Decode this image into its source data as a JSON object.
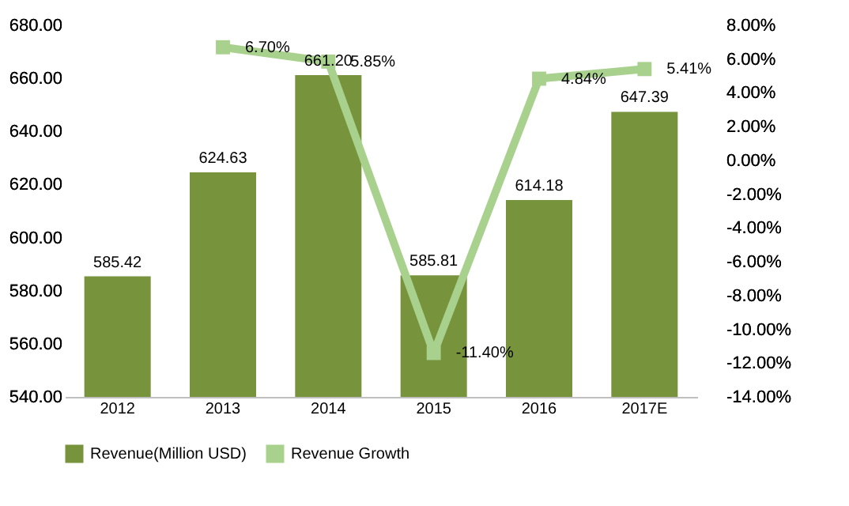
{
  "chart_data": {
    "type": "bar",
    "categories": [
      "2012",
      "2013",
      "2014",
      "2015",
      "2016",
      "2017E"
    ],
    "series": [
      {
        "name": "Revenue(Million USD)",
        "color": "#77933c",
        "values": [
          585.42,
          624.63,
          661.2,
          585.81,
          614.18,
          647.39
        ],
        "value_labels": [
          "585.42",
          "624.63",
          "661.20",
          "585.81",
          "614.18",
          "647.39"
        ]
      },
      {
        "name": "Revenue Growth",
        "type": "line",
        "axis": "y2",
        "color": "#a9d18e",
        "marker": "square",
        "values": [
          null,
          6.7,
          5.85,
          -11.4,
          4.84,
          5.41
        ],
        "value_labels": [
          null,
          "6.70%",
          "5.85%",
          "-11.40%",
          "4.84%",
          "5.41%"
        ]
      }
    ],
    "ylim": [
      540,
      680
    ],
    "yticks": [
      {
        "value": 540,
        "label": "540.00"
      },
      {
        "value": 560,
        "label": "560.00"
      },
      {
        "value": 580,
        "label": "580.00"
      },
      {
        "value": 600,
        "label": "600.00"
      },
      {
        "value": 620,
        "label": "620.00"
      },
      {
        "value": 640,
        "label": "640.00"
      },
      {
        "value": 660,
        "label": "660.00"
      },
      {
        "value": 680,
        "label": "680.00"
      }
    ],
    "y2lim": [
      -14,
      8
    ],
    "y2ticks": [
      {
        "value": -14,
        "label": "-14.00%"
      },
      {
        "value": -12,
        "label": "-12.00%"
      },
      {
        "value": -10,
        "label": "-10.00%"
      },
      {
        "value": -8,
        "label": "-8.00%"
      },
      {
        "value": -6,
        "label": "-6.00%"
      },
      {
        "value": -4,
        "label": "-4.00%"
      },
      {
        "value": -2,
        "label": "-2.00%"
      },
      {
        "value": 0,
        "label": "0.00%"
      },
      {
        "value": 2,
        "label": "2.00%"
      },
      {
        "value": 4,
        "label": "4.00%"
      },
      {
        "value": 6,
        "label": "6.00%"
      },
      {
        "value": 8,
        "label": "8.00%"
      }
    ],
    "legend": "bottom",
    "grid": false
  }
}
